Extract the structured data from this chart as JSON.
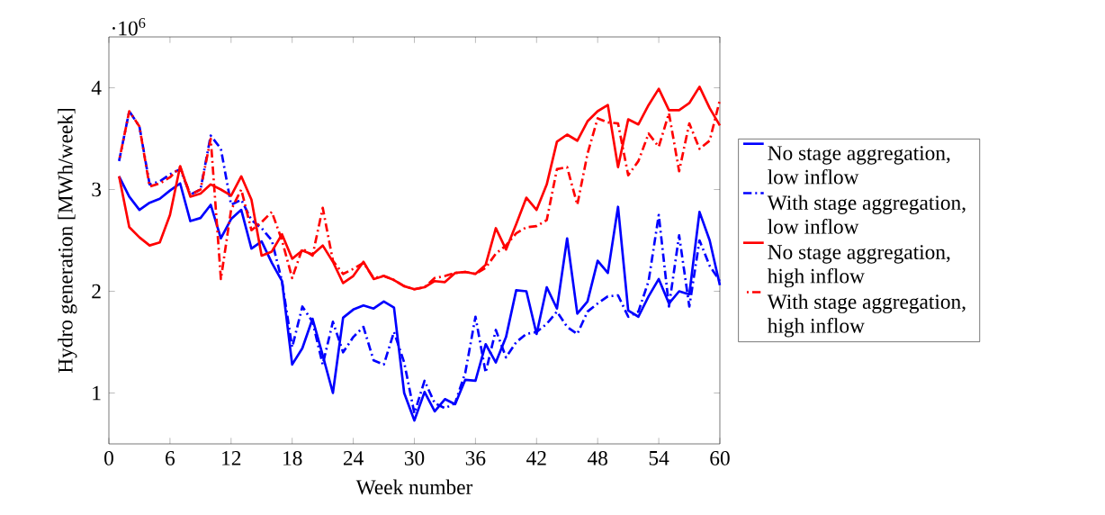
{
  "chart_data": {
    "type": "line",
    "xlabel": "Week number",
    "ylabel": "Hydro generation [MWh/week]",
    "x": [
      1,
      2,
      3,
      4,
      5,
      6,
      7,
      8,
      9,
      10,
      11,
      12,
      13,
      14,
      15,
      16,
      17,
      18,
      19,
      20,
      21,
      22,
      23,
      24,
      25,
      26,
      27,
      28,
      29,
      30,
      31,
      32,
      33,
      34,
      35,
      36,
      37,
      38,
      39,
      40,
      41,
      42,
      43,
      44,
      45,
      46,
      47,
      48,
      49,
      50,
      51,
      52,
      53,
      54,
      55,
      56,
      57,
      58,
      59,
      60
    ],
    "xlim": [
      0,
      60
    ],
    "xticks": [
      0,
      6,
      12,
      18,
      24,
      30,
      36,
      42,
      48,
      54,
      60
    ],
    "ylim": [
      0.5,
      4.5
    ],
    "yticks": [
      1,
      2,
      3,
      4
    ],
    "annotations": [
      "·10$^{6}$"
    ],
    "legend": "right",
    "marker": "none",
    "series": [
      {
        "name": "No stage aggregation, low inflow",
        "color": "#0000ff",
        "line_style": "solid",
        "values": [
          3.13,
          2.93,
          2.8,
          2.87,
          2.91,
          2.99,
          3.06,
          2.69,
          2.72,
          2.85,
          2.52,
          2.71,
          2.8,
          2.42,
          2.49,
          2.28,
          2.1,
          1.28,
          1.44,
          1.73,
          1.37,
          1.0,
          1.74,
          1.82,
          1.86,
          1.83,
          1.9,
          1.84,
          1.0,
          0.73,
          1.01,
          0.82,
          0.94,
          0.89,
          1.13,
          1.12,
          1.48,
          1.3,
          1.55,
          2.01,
          2.0,
          1.58,
          2.04,
          1.83,
          2.52,
          1.78,
          1.9,
          2.3,
          2.18,
          2.83,
          1.81,
          1.75,
          1.95,
          2.12,
          1.88,
          2.0,
          1.97,
          2.78,
          2.5,
          2.06
        ]
      },
      {
        "name": "With stage aggregation, low inflow",
        "color": "#0000ff",
        "line_style": "dashdot",
        "values": [
          3.28,
          3.77,
          3.62,
          3.05,
          3.08,
          3.15,
          3.2,
          2.95,
          3.0,
          3.53,
          3.4,
          2.85,
          2.9,
          2.7,
          2.62,
          2.5,
          2.1,
          1.45,
          1.85,
          1.7,
          1.28,
          1.7,
          1.4,
          1.55,
          1.65,
          1.32,
          1.28,
          1.6,
          1.3,
          0.8,
          1.12,
          0.9,
          0.85,
          0.9,
          1.2,
          1.75,
          1.2,
          1.62,
          1.35,
          1.5,
          1.58,
          1.6,
          1.68,
          1.8,
          1.65,
          1.58,
          1.8,
          1.88,
          1.95,
          1.96,
          1.75,
          1.8,
          2.1,
          2.75,
          1.85,
          2.55,
          1.85,
          2.5,
          2.25,
          2.1
        ]
      },
      {
        "name": "No stage aggregation, high inflow",
        "color": "#ff0000",
        "line_style": "solid",
        "values": [
          3.13,
          2.63,
          2.53,
          2.45,
          2.48,
          2.75,
          3.23,
          2.93,
          2.96,
          3.05,
          3.0,
          2.94,
          3.13,
          2.9,
          2.35,
          2.39,
          2.56,
          2.32,
          2.4,
          2.36,
          2.45,
          2.29,
          2.08,
          2.15,
          2.29,
          2.12,
          2.15,
          2.11,
          2.05,
          2.02,
          2.04,
          2.1,
          2.09,
          2.18,
          2.19,
          2.17,
          2.26,
          2.62,
          2.41,
          2.66,
          2.92,
          2.8,
          3.05,
          3.47,
          3.54,
          3.48,
          3.67,
          3.77,
          3.83,
          3.22,
          3.69,
          3.64,
          3.83,
          3.99,
          3.78,
          3.78,
          3.85,
          4.01,
          3.8,
          3.63
        ]
      },
      {
        "name": "With stage aggregation, high inflow",
        "color": "#ff0000",
        "line_style": "dashdot",
        "values": [
          3.28,
          3.77,
          3.62,
          3.03,
          3.06,
          3.12,
          3.22,
          2.95,
          3.0,
          3.5,
          2.12,
          2.8,
          3.0,
          2.6,
          2.68,
          2.78,
          2.5,
          2.13,
          2.42,
          2.35,
          2.82,
          2.3,
          2.17,
          2.22,
          2.28,
          2.13,
          2.15,
          2.11,
          2.05,
          2.02,
          2.04,
          2.13,
          2.15,
          2.18,
          2.19,
          2.17,
          2.23,
          2.37,
          2.45,
          2.57,
          2.63,
          2.64,
          2.7,
          3.2,
          3.22,
          2.85,
          3.35,
          3.7,
          3.66,
          3.65,
          3.14,
          3.28,
          3.55,
          3.42,
          3.75,
          3.18,
          3.65,
          3.4,
          3.48,
          3.88
        ]
      }
    ]
  }
}
